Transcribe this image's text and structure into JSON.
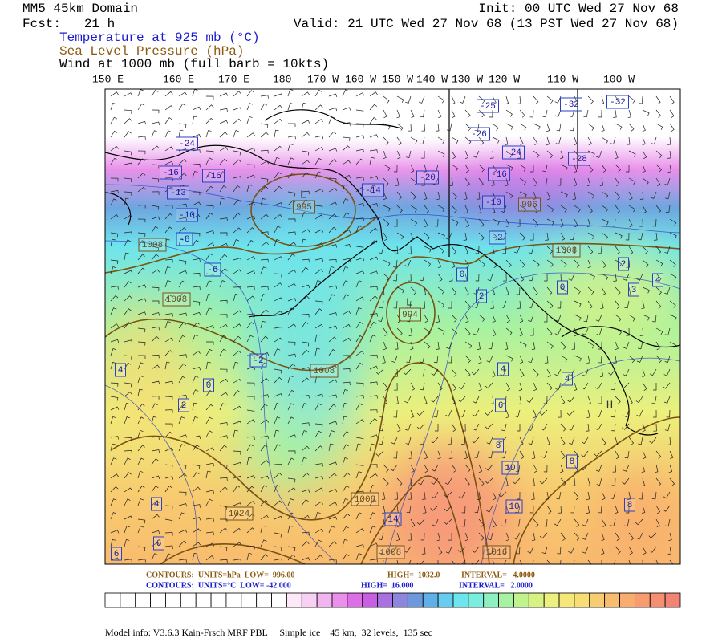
{
  "header": {
    "domain": "MM5 45km Domain",
    "init": "Init: 00 UTC Wed 27 Nov 68",
    "fcst": "Fcst:   21 h",
    "valid": "Valid: 21 UTC Wed 27 Nov 68 (13 PST Wed 27 Nov 68)",
    "fields": [
      "Temperature at 925 mb (°C)",
      "Sea Level Pressure (hPa)",
      "Wind at 1000 mb (full barb = 10kts)"
    ]
  },
  "longitudes": [
    "150 E",
    "160 E",
    "170 E",
    "180",
    "170 W",
    "160 W",
    "150 W",
    "140 W",
    "130 W",
    "120 W",
    "110 W",
    "100 W"
  ],
  "map_labels": {
    "temperature": [
      "-32",
      "-32",
      "-25",
      "-26",
      "-24",
      "-28",
      "-20",
      "-16",
      "-14",
      "-10",
      "-24",
      "-16",
      "-16",
      "-13",
      "-10",
      "-8",
      "-6",
      "-2",
      "2",
      "4",
      "0",
      "0",
      "2",
      "3",
      "-2",
      "0",
      "2",
      "4",
      "4",
      "6",
      "4",
      "8",
      "10",
      "8",
      "10",
      "8",
      "4",
      "6",
      "6",
      "14"
    ],
    "pressure": [
      "1008",
      "1008",
      "1008",
      "1008",
      "1024",
      "1008",
      "1008",
      "1016",
      "995",
      "994",
      "996"
    ],
    "centers": [
      "L",
      "L",
      "H"
    ]
  },
  "contour_info": {
    "pressure": [
      "CONTOURS:  UNITS=hPa  LOW=  996.00",
      "HIGH=  1032.0",
      "INTERVAL=   4.0000"
    ],
    "temperature": [
      "CONTOURS:  UNITS=°C  LOW= -42.000",
      "HIGH=  16.000",
      "INTERVAL=   2.0000"
    ]
  },
  "colorbar": [
    "#ffffff",
    "#ffffff",
    "#ffffff",
    "#ffffff",
    "#ffffff",
    "#ffffff",
    "#ffffff",
    "#ffffff",
    "#ffffff",
    "#ffffff",
    "#ffffff",
    "#ffffff",
    "#fde8f8",
    "#f8d0f4",
    "#f2b4ee",
    "#e890ea",
    "#dc6ee6",
    "#c85ee4",
    "#a870e0",
    "#8c86dc",
    "#6e98dc",
    "#60b0e8",
    "#66cdf0",
    "#6ee4ec",
    "#7aeede",
    "#8ef0c0",
    "#a6f2a2",
    "#c0f28e",
    "#d8f282",
    "#ecf07c",
    "#f6e878",
    "#f8dc74",
    "#f8cc70",
    "#f8bc6e",
    "#f8ac6e",
    "#f89c70",
    "#f68e72",
    "#f28476"
  ],
  "footer": "Model info: V3.6.3 Kain-Frsch MRF PBL     Simple ice    45 km,  32 levels,  135 sec"
}
